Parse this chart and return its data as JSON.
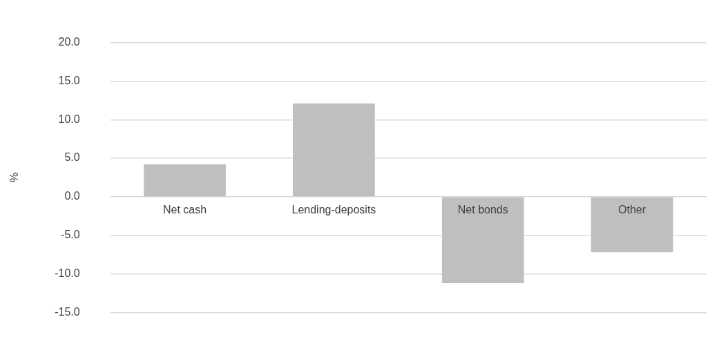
{
  "chart_data": {
    "type": "bar",
    "ylabel": "%",
    "categories": [
      "Net cash",
      "Lending-deposits",
      "Net bonds",
      "Other"
    ],
    "values": [
      4.2,
      12.1,
      -11.2,
      -7.2
    ],
    "color": "#bfbfbf",
    "ylim": [
      -15,
      20
    ],
    "yticks": [
      {
        "value": -15,
        "label": "-15.0"
      },
      {
        "value": -10,
        "label": "-10.0"
      },
      {
        "value": -5,
        "label": "-5.0"
      },
      {
        "value": 0,
        "label": "0.0"
      },
      {
        "value": 5,
        "label": "5.0"
      },
      {
        "value": 10,
        "label": "10.0"
      },
      {
        "value": 15,
        "label": "15.0"
      },
      {
        "value": 20,
        "label": "20.0"
      }
    ],
    "grid": "y",
    "legend": false
  }
}
